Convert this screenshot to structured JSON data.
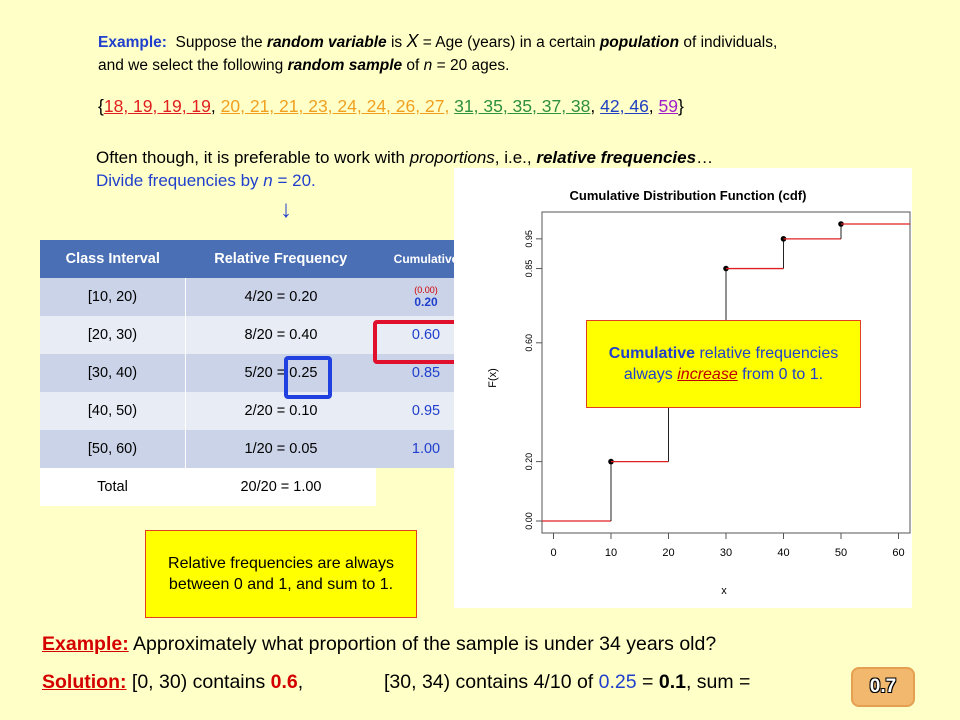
{
  "intro": {
    "label": "Example:",
    "t1": "Suppose the ",
    "t2": "random variable",
    "t3": " is ",
    "t4": "X",
    "t5": " = Age (years) in a certain ",
    "t6": "population",
    "t7": " of individuals,",
    "t8": "and we select the following ",
    "t9": "random sample",
    "t10": " of ",
    "t11": "n",
    "t12": " = 20 ages."
  },
  "dataset": {
    "open": "{",
    "g1": "18, 19, 19, 19",
    "g2": "20, 21, 21, 23, 24, 24, 26, 27",
    "g3": "31, 35, 35, 37, 38",
    "g4": "42, 46",
    "g5": "59",
    "close": "}",
    "comma": ", "
  },
  "often": {
    "t1": "Often though, it is preferable to work with ",
    "t2": "proportions",
    "t3": ", i.e., ",
    "t4": "relative frequencies",
    "t5": "…",
    "t6": "Divide frequencies by ",
    "t7": "n",
    "t8": " = 20.",
    "arrow": "↓"
  },
  "table": {
    "headers": [
      "Class Interval",
      "Relative Frequency"
    ],
    "rows": [
      [
        "[10, 20)",
        "4/20 = 0.20"
      ],
      [
        "[20, 30)",
        "8/20 = 0.40"
      ],
      [
        "[30, 40)",
        "5/20 = 0.25"
      ],
      [
        "[40, 50)",
        "2/20 = 0.10"
      ],
      [
        "[50, 60)",
        "1/20 = 0.05"
      ],
      [
        "Total",
        "20/20 = 1.00"
      ]
    ]
  },
  "cumulative": {
    "header": "Cumulative",
    "first_small": "(0.00)",
    "values": [
      "0.20",
      "0.60",
      "0.85",
      "0.95",
      "1.00"
    ]
  },
  "note1": "Relative frequencies are always between 0 and 1, and sum to 1.",
  "note2": {
    "t1": "Cumulative",
    "t2": " relative frequencies always ",
    "t3": "increase",
    "t4": " from 0 to 1."
  },
  "chart_data": {
    "type": "line",
    "title": "Cumulative Distribution Function (cdf)",
    "xlabel": "x",
    "ylabel": "F(x)",
    "xlim": [
      -2,
      62
    ],
    "ylim": [
      0,
      1
    ],
    "xticks": [
      0,
      10,
      20,
      30,
      40,
      50,
      60
    ],
    "yticks": [
      0.0,
      0.2,
      0.6,
      0.85,
      0.95
    ],
    "ytick_labels": [
      "0.00",
      "0.20",
      "0.60",
      "0.85",
      "0.95"
    ],
    "steps": [
      {
        "x": 10,
        "y": 0.2
      },
      {
        "x": 20,
        "y": 0.6
      },
      {
        "x": 30,
        "y": 0.85
      },
      {
        "x": 40,
        "y": 0.95
      },
      {
        "x": 50,
        "y": 1.0
      }
    ],
    "start": {
      "x": -2,
      "y": 0.0
    },
    "end_x": 62,
    "step_color": "#E02020"
  },
  "example": {
    "label": "Example:",
    "text": " Approximately  what proportion of the sample is under 34 years old?"
  },
  "solution": {
    "label": "Solution:",
    "t1": " [0, 30) contains ",
    "v1": "0.6",
    "t2": ",",
    "t3": "[30, 34) contains 4/10 of ",
    "v2": "0.25",
    "t4": " = ",
    "v3": "0.1",
    "t5": ",   sum = ",
    "answer": "0.7"
  }
}
